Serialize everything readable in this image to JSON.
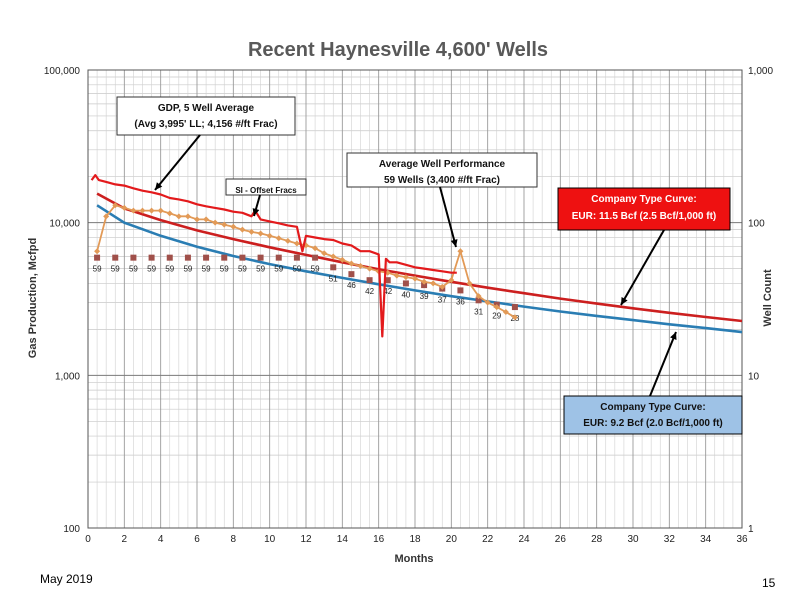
{
  "footer": {
    "date": "May 2019",
    "page": "15"
  },
  "chart_data": {
    "type": "line",
    "title": "Recent Haynesville 4,600' Wells",
    "xlabel": "Months",
    "ylabel": "Gas Production, Mcfpd",
    "y2label": "Well Count",
    "xlim": [
      0,
      36
    ],
    "ylim": [
      100,
      100000
    ],
    "y2lim": [
      1,
      1000
    ],
    "yscale": "log",
    "y2scale": "log",
    "x_ticks": [
      "0",
      "2",
      "4",
      "6",
      "8",
      "10",
      "12",
      "14",
      "16",
      "18",
      "20",
      "22",
      "24",
      "26",
      "28",
      "30",
      "32",
      "34",
      "36"
    ],
    "y_ticks": [
      "100",
      "1,000",
      "10,000",
      "100,000"
    ],
    "y2_ticks": [
      "1",
      "10",
      "100",
      "1,000"
    ],
    "grid": true,
    "series": [
      {
        "name": "GDP, 5 Well Average",
        "color": "#e31a1c",
        "axis": "left",
        "x": [
          0.2,
          0.4,
          0.6,
          1,
          1.5,
          2,
          2.5,
          3,
          3.5,
          4,
          4.5,
          5,
          5.5,
          6,
          6.5,
          7,
          7.5,
          8,
          8.5,
          9,
          9.2,
          9.5,
          10,
          10.5,
          11,
          11.5,
          11.8,
          12,
          12.5,
          13,
          13.5,
          14,
          14.5,
          15,
          15.5,
          16,
          16.2,
          16.4,
          16.6,
          17,
          17.5,
          18,
          18.5,
          19,
          19.5,
          20,
          20.3
        ],
        "y": [
          19000,
          20500,
          19000,
          18500,
          17800,
          17500,
          16800,
          16200,
          15800,
          15300,
          14500,
          14200,
          13800,
          13200,
          12800,
          12500,
          12200,
          11800,
          11600,
          11000,
          12000,
          10500,
          10200,
          9900,
          9600,
          9400,
          6500,
          8200,
          8000,
          7800,
          7700,
          7300,
          7100,
          6500,
          6500,
          6200,
          1800,
          5800,
          5500,
          5500,
          5300,
          5100,
          5000,
          4900,
          4800,
          4700,
          4700
        ]
      },
      {
        "name": "Average Well Performance",
        "color": "#e29a57",
        "axis": "left",
        "x": [
          0.5,
          1,
          1.5,
          2,
          2.5,
          3,
          3.5,
          4,
          4.5,
          5,
          5.5,
          6,
          6.5,
          7,
          7.5,
          8,
          8.5,
          9,
          9.5,
          10,
          10.5,
          11,
          11.5,
          12,
          12.5,
          13,
          13.5,
          14,
          14.5,
          15,
          15.5,
          16,
          16.5,
          17,
          17.5,
          18,
          18.5,
          19,
          19.5,
          20,
          20.5,
          21,
          21.5,
          22,
          22.5,
          23,
          23.5
        ],
        "y": [
          6500,
          11000,
          13000,
          12500,
          12000,
          12000,
          12000,
          12000,
          11500,
          11000,
          11000,
          10500,
          10500,
          10000,
          9700,
          9400,
          9000,
          8700,
          8500,
          8200,
          7900,
          7600,
          7300,
          7100,
          6800,
          6300,
          6000,
          5700,
          5400,
          5200,
          5000,
          4800,
          4700,
          4500,
          4400,
          4300,
          4100,
          4000,
          3800,
          4200,
          6500,
          4000,
          3300,
          3000,
          2800,
          2600,
          2400
        ]
      },
      {
        "name": "Company Type Curve: EUR: 11.5 Bcf (2.5 Bcf/1,000 ft)",
        "color": "#cc1f1f",
        "axis": "left",
        "x": [
          0.5,
          2,
          4,
          6,
          8,
          10,
          12,
          14,
          16,
          18,
          20,
          22,
          24,
          26,
          28,
          30,
          32,
          34,
          36
        ],
        "y": [
          15500,
          12400,
          10400,
          8900,
          7800,
          6900,
          6150,
          5500,
          4950,
          4500,
          4100,
          3750,
          3450,
          3180,
          2950,
          2750,
          2570,
          2410,
          2270
        ]
      },
      {
        "name": "Company Type Curve: EUR: 9.2 Bcf (2.0 Bcf/1,000 ft)",
        "color": "#2a7db3",
        "axis": "left",
        "x": [
          0.5,
          2,
          4,
          6,
          8,
          10,
          12,
          14,
          16,
          18,
          20,
          22,
          24,
          26,
          28,
          30,
          32,
          34,
          36
        ],
        "y": [
          13000,
          10000,
          8200,
          6950,
          6050,
          5350,
          4800,
          4350,
          3950,
          3600,
          3300,
          3050,
          2820,
          2620,
          2450,
          2300,
          2160,
          2040,
          1920
        ]
      },
      {
        "name": "Well Count",
        "color": "#a0504a",
        "axis": "right",
        "x": [
          0.5,
          1.5,
          2.5,
          3.5,
          4.5,
          5.5,
          6.5,
          7.5,
          8.5,
          9.5,
          10.5,
          11.5,
          12.5,
          13.5,
          14.5,
          15.5,
          16.5,
          17.5,
          18.5,
          19.5,
          20.5,
          21.5,
          22.5,
          23.5
        ],
        "values": [
          59,
          59,
          59,
          59,
          59,
          59,
          59,
          59,
          59,
          59,
          59,
          59,
          59,
          51,
          46,
          42,
          42,
          40,
          39,
          37,
          36,
          31,
          29,
          28
        ],
        "labels": [
          "59",
          "59",
          "59",
          "59",
          "59",
          "59",
          "59",
          "59",
          "59",
          "59",
          "59",
          "59",
          "59",
          "51",
          "46",
          "42",
          "42",
          "40",
          "39",
          "37",
          "36",
          "31",
          "29",
          "28"
        ]
      }
    ],
    "annotations": [
      {
        "text": [
          "GDP, 5 Well Average",
          "(Avg 3,995' LL; 4,156 #/ft Frac)"
        ],
        "style": "box"
      },
      {
        "text": [
          "SI - Offset Fracs"
        ],
        "style": "box-small"
      },
      {
        "text": [
          "Average Well Performance",
          "59 Wells (3,400 #/ft Frac)"
        ],
        "style": "box"
      },
      {
        "text": [
          "Company Type Curve:",
          "EUR: 11.5 Bcf (2.5 Bcf/1,000 ft)"
        ],
        "style": "red-box"
      },
      {
        "text": [
          "Company Type Curve:",
          "EUR: 9.2 Bcf (2.0 Bcf/1,000 ft)"
        ],
        "style": "blue-box"
      }
    ]
  }
}
